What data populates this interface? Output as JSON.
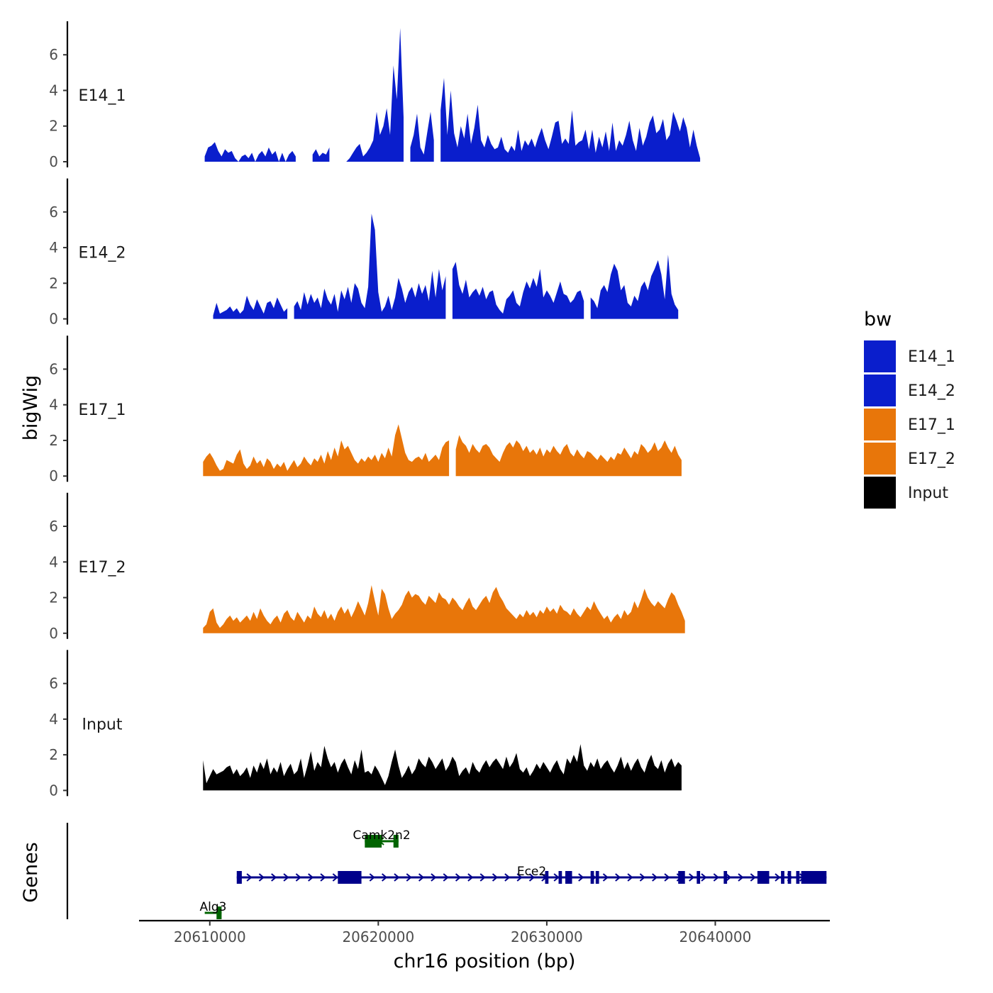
{
  "chart_data": {
    "type": "area",
    "ylabel": "bigWig",
    "xlabel": "chr16 position (bp)",
    "xlim": [
      20605800,
      20646800
    ],
    "x_ticks": [
      20610000,
      20620000,
      20630000,
      20640000
    ],
    "x_tick_labels": [
      "20610000",
      "20620000",
      "20630000",
      "20640000"
    ],
    "ylim": [
      0,
      7.8
    ],
    "y_ticks": [
      0,
      2,
      4,
      6
    ],
    "y_tick_labels": [
      "0",
      "2",
      "4",
      "6"
    ],
    "legend": {
      "title": "bw",
      "position": "right",
      "items": [
        {
          "label": "E14_1",
          "color": "#0A1ECC"
        },
        {
          "label": "E14_2",
          "color": "#0A1ECC"
        },
        {
          "label": "E17_1",
          "color": "#E8760A"
        },
        {
          "label": "E17_2",
          "color": "#E8760A"
        },
        {
          "label": "Input",
          "color": "#000000"
        }
      ]
    },
    "series": [
      {
        "name": "E14_1",
        "color": "#0A1ECC",
        "start": 20609700,
        "step": 200,
        "values": [
          0.3,
          0.8,
          0.9,
          1.1,
          0.6,
          0.3,
          0.7,
          0.5,
          0.6,
          0.2,
          0,
          0.3,
          0.4,
          0.2,
          0.5,
          0,
          0.4,
          0.6,
          0.3,
          0.8,
          0.4,
          0.6,
          0,
          0.5,
          0,
          0.4,
          0.6,
          0.3,
          0,
          0,
          0,
          0,
          0.4,
          0.7,
          0.3,
          0.5,
          0.4,
          0.8,
          0,
          0.3,
          0,
          0.6,
          0,
          0.2,
          0.5,
          0.8,
          1.0,
          0.3,
          0.5,
          0.8,
          1.2,
          2.8,
          1.5,
          2.0,
          3.0,
          1.5,
          5.4,
          3.5,
          7.5,
          2.5,
          0.4,
          0.8,
          1.5,
          2.7,
          0.8,
          0.4,
          1.6,
          2.8,
          1.2,
          1.6,
          2.9,
          4.7,
          1.5,
          4.0,
          1.6,
          0.8,
          2.0,
          1.3,
          2.7,
          1.0,
          1.9,
          3.2,
          1.2,
          0.8,
          1.5,
          1.0,
          0.7,
          0.8,
          1.4,
          0.7,
          0.5,
          0.9,
          0.6,
          1.8,
          0.6,
          1.2,
          0.9,
          1.3,
          0.8,
          1.4,
          1.9,
          1.2,
          0.7,
          1.4,
          2.2,
          2.3,
          1.0,
          1.3,
          1.0,
          2.9,
          0.9,
          1.1,
          1.2,
          1.8,
          0.7,
          1.8,
          0.5,
          1.4,
          0.8,
          1.7,
          0.6,
          2.2,
          0.6,
          1.2,
          0.9,
          1.5,
          2.3,
          1.2,
          0.6,
          1.9,
          0.9,
          1.4,
          2.2,
          2.6,
          1.6,
          1.8,
          2.4,
          1.2,
          1.5,
          2.8,
          2.3,
          1.7,
          2.5,
          1.9,
          0.8,
          1.8,
          0.9,
          0.2
        ],
        "gaps": [
          [
            20615150,
            20616000
          ],
          [
            20617200,
            20618000
          ],
          [
            20621600,
            20621900
          ],
          [
            20623300,
            20623600
          ]
        ]
      },
      {
        "name": "E14_2",
        "color": "#0A1ECC",
        "start": 20610200,
        "step": 200,
        "values": [
          0.2,
          0.9,
          0.3,
          0.4,
          0.5,
          0.7,
          0.4,
          0.6,
          0.3,
          0.5,
          1.3,
          0.8,
          0.5,
          1.1,
          0.7,
          0.3,
          0.9,
          1.0,
          0.6,
          1.2,
          0.8,
          0.4,
          0.6,
          0.3,
          0.7,
          1.0,
          0.5,
          1.5,
          0.8,
          1.4,
          0.9,
          1.2,
          0.6,
          1.7,
          1.1,
          0.8,
          1.4,
          0.4,
          1.6,
          1.1,
          1.8,
          0.9,
          2.0,
          1.7,
          0.9,
          0.6,
          1.8,
          5.9,
          5.0,
          1.5,
          0.4,
          0.7,
          1.3,
          0.5,
          1.2,
          2.3,
          1.7,
          0.9,
          1.5,
          1.8,
          1.2,
          2.0,
          1.4,
          1.9,
          1.0,
          2.7,
          1.2,
          2.8,
          1.6,
          2.4,
          3.3,
          2.8,
          3.2,
          1.9,
          1.4,
          2.2,
          1.2,
          1.5,
          1.7,
          1.3,
          1.8,
          1.1,
          1.5,
          1.6,
          0.8,
          0.5,
          0.3,
          1.1,
          1.3,
          1.6,
          0.9,
          0.7,
          1.5,
          2.1,
          1.7,
          2.3,
          1.8,
          2.8,
          1.2,
          1.6,
          1.3,
          0.9,
          1.5,
          2.1,
          1.4,
          1.3,
          0.9,
          1.1,
          1.5,
          1.6,
          1.0,
          0.8,
          1.2,
          1.0,
          0.6,
          1.6,
          1.9,
          1.5,
          2.5,
          3.1,
          2.7,
          1.6,
          1.9,
          0.9,
          0.7,
          1.3,
          1.0,
          1.8,
          2.1,
          1.6,
          2.4,
          2.8,
          3.3,
          2.5,
          1.1,
          3.6,
          1.4,
          0.8,
          0.5
        ],
        "gaps": [
          [
            20614700,
            20615000
          ],
          [
            20624000,
            20624300
          ],
          [
            20632300,
            20632600
          ],
          [
            20640000,
            20640300
          ]
        ]
      },
      {
        "name": "E17_1",
        "color": "#E8760A",
        "start": 20609600,
        "step": 200,
        "values": [
          0.8,
          1.1,
          1.3,
          1.0,
          0.6,
          0.3,
          0.4,
          0.9,
          0.8,
          0.7,
          1.2,
          1.5,
          0.7,
          0.4,
          0.6,
          1.1,
          0.7,
          0.9,
          0.5,
          1.0,
          0.8,
          0.4,
          0.7,
          0.5,
          0.8,
          0.3,
          0.6,
          0.9,
          0.5,
          0.7,
          1.1,
          0.8,
          0.6,
          1.0,
          0.8,
          1.2,
          0.7,
          1.4,
          0.9,
          1.6,
          1.1,
          2.0,
          1.5,
          1.7,
          1.3,
          0.9,
          0.7,
          1.0,
          0.8,
          1.1,
          0.9,
          1.2,
          0.8,
          1.3,
          1.0,
          1.6,
          1.1,
          2.3,
          2.9,
          2.1,
          1.3,
          0.9,
          0.8,
          1.0,
          1.1,
          0.9,
          1.3,
          0.8,
          1.0,
          1.2,
          0.9,
          1.6,
          1.9,
          2.0,
          2.1,
          1.5,
          2.3,
          1.9,
          1.7,
          1.3,
          1.8,
          1.5,
          1.3,
          1.7,
          1.8,
          1.6,
          1.2,
          1.0,
          0.8,
          1.3,
          1.7,
          1.9,
          1.6,
          2.0,
          1.8,
          1.4,
          1.7,
          1.3,
          1.5,
          1.2,
          1.6,
          1.1,
          1.5,
          1.3,
          1.7,
          1.4,
          1.2,
          1.6,
          1.8,
          1.3,
          1.1,
          1.5,
          1.2,
          1.0,
          1.4,
          1.3,
          1.1,
          0.9,
          1.2,
          1.0,
          0.8,
          1.1,
          0.9,
          1.3,
          1.2,
          1.6,
          1.3,
          1.0,
          1.4,
          1.2,
          1.8,
          1.6,
          1.3,
          1.5,
          1.9,
          1.4,
          1.6,
          2.0,
          1.6,
          1.3,
          1.7,
          1.2,
          0.9
        ],
        "gaps": [
          [
            20613400,
            20613600
          ],
          [
            20624300,
            20624500
          ],
          [
            20630000,
            20630200
          ]
        ]
      },
      {
        "name": "E17_2",
        "color": "#E8760A",
        "start": 20609600,
        "step": 200,
        "values": [
          0.3,
          0.5,
          1.2,
          1.4,
          0.6,
          0.3,
          0.5,
          0.8,
          1.0,
          0.7,
          0.9,
          0.6,
          0.8,
          1.0,
          0.7,
          1.2,
          0.8,
          1.4,
          1.0,
          0.7,
          0.5,
          0.8,
          1.0,
          0.6,
          1.1,
          1.3,
          0.9,
          0.7,
          1.2,
          0.9,
          0.6,
          1.0,
          0.8,
          1.5,
          1.1,
          0.9,
          1.3,
          0.8,
          1.1,
          0.7,
          1.2,
          1.5,
          1.1,
          1.4,
          0.9,
          1.3,
          1.8,
          1.4,
          1.0,
          1.7,
          2.7,
          1.8,
          1.0,
          2.5,
          2.2,
          1.4,
          0.8,
          1.1,
          1.3,
          1.6,
          2.1,
          2.4,
          2.0,
          2.2,
          2.1,
          1.8,
          1.6,
          2.1,
          1.9,
          1.7,
          2.3,
          2.0,
          1.9,
          1.6,
          2.0,
          1.8,
          1.5,
          1.3,
          1.7,
          2.0,
          1.5,
          1.3,
          1.6,
          1.9,
          2.1,
          1.7,
          2.3,
          2.6,
          2.1,
          1.8,
          1.4,
          1.2,
          1.0,
          0.8,
          1.1,
          0.9,
          1.3,
          1.0,
          1.2,
          0.9,
          1.3,
          1.1,
          1.5,
          1.2,
          1.4,
          1.1,
          1.6,
          1.3,
          1.2,
          1.0,
          1.4,
          1.1,
          0.9,
          1.2,
          1.5,
          1.3,
          1.8,
          1.4,
          1.1,
          0.8,
          1.0,
          0.6,
          0.9,
          1.1,
          0.8,
          1.3,
          1.0,
          1.2,
          1.8,
          1.4,
          1.9,
          2.5,
          2.0,
          1.7,
          1.5,
          1.8,
          1.6,
          1.4,
          1.9,
          2.3,
          2.1,
          1.6,
          1.2,
          0.7
        ],
        "gaps": [
          [
            20631800,
            20632000
          ],
          [
            20639500,
            20639800
          ]
        ]
      },
      {
        "name": "Input",
        "color": "#000000",
        "start": 20609600,
        "step": 200,
        "values": [
          1.7,
          0.4,
          0.8,
          1.2,
          0.9,
          1.0,
          1.1,
          1.3,
          1.4,
          0.9,
          1.2,
          0.8,
          1.0,
          1.3,
          0.7,
          1.4,
          1.0,
          1.6,
          1.2,
          1.8,
          0.9,
          1.3,
          1.0,
          1.6,
          0.8,
          1.2,
          1.5,
          0.9,
          1.1,
          1.8,
          0.7,
          1.4,
          2.2,
          1.1,
          1.6,
          1.3,
          2.5,
          1.8,
          1.3,
          1.6,
          1.0,
          1.5,
          1.8,
          1.3,
          0.9,
          1.7,
          1.2,
          2.3,
          1.0,
          1.1,
          0.9,
          1.4,
          1.1,
          0.7,
          0.3,
          0.8,
          1.6,
          2.3,
          1.4,
          0.7,
          1.0,
          1.4,
          0.9,
          1.2,
          1.8,
          1.5,
          1.3,
          1.9,
          1.6,
          1.2,
          1.5,
          1.8,
          1.1,
          1.4,
          1.9,
          1.6,
          0.8,
          1.1,
          1.3,
          0.9,
          1.6,
          1.2,
          1.0,
          1.4,
          1.7,
          1.3,
          1.6,
          1.8,
          1.5,
          1.2,
          1.9,
          1.3,
          1.6,
          2.1,
          1.2,
          1.0,
          1.3,
          0.8,
          1.1,
          1.5,
          1.2,
          1.6,
          1.3,
          1.0,
          1.4,
          1.7,
          1.2,
          0.9,
          1.8,
          1.5,
          2.0,
          1.6,
          2.6,
          1.4,
          1.1,
          1.6,
          1.3,
          1.8,
          1.2,
          1.5,
          1.7,
          1.3,
          1.0,
          1.4,
          1.9,
          1.2,
          1.6,
          1.1,
          1.5,
          1.8,
          1.3,
          1.0,
          1.6,
          2.0,
          1.4,
          1.2,
          1.7,
          1.0,
          1.5,
          1.8,
          1.3,
          1.6,
          1.4
        ],
        "gaps": []
      }
    ],
    "genes": {
      "title": "Genes",
      "items": [
        {
          "name": "Camk2n2",
          "strand": "-",
          "color": "#006400",
          "row": 0,
          "start": 20619200,
          "end": 20621200,
          "exons": [
            [
              20619200,
              20620200
            ],
            [
              20620900,
              20621200
            ]
          ]
        },
        {
          "name": "Ece2",
          "strand": "+",
          "color": "#00008B",
          "row": 1,
          "start": 20611600,
          "end": 20646600,
          "exons": [
            [
              20611600,
              20611900
            ],
            [
              20617600,
              20619000
            ],
            [
              20629900,
              20630100
            ],
            [
              20630700,
              20630900
            ],
            [
              20631100,
              20631500
            ],
            [
              20632600,
              20632800
            ],
            [
              20632900,
              20633100
            ],
            [
              20637800,
              20638200
            ],
            [
              20638900,
              20639100
            ],
            [
              20640500,
              20640700
            ],
            [
              20642500,
              20643200
            ],
            [
              20643900,
              20644100
            ],
            [
              20644300,
              20644500
            ],
            [
              20644800,
              20645000
            ],
            [
              20645100,
              20646600
            ]
          ]
        },
        {
          "name": "Alg3",
          "strand": "-",
          "color": "#006400",
          "row": 2,
          "start": 20609700,
          "end": 20610700,
          "exons": [
            [
              20610400,
              20610700
            ]
          ]
        }
      ]
    }
  }
}
